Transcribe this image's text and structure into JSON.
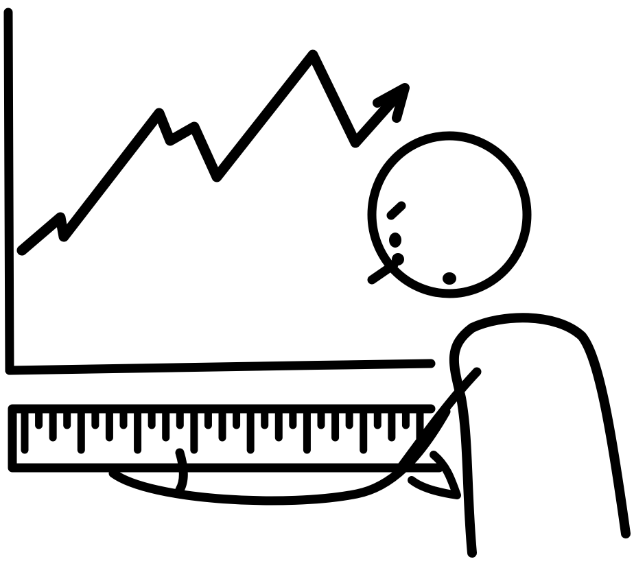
{
  "illustration": {
    "subject": "stick-figure-person-holding-ruler-under-line-chart",
    "colors": {
      "ink": "#000000",
      "background": "#ffffff"
    },
    "chart": {
      "trend": "rising",
      "has_arrowhead": true
    },
    "ruler": {
      "tick_count": 29
    }
  }
}
